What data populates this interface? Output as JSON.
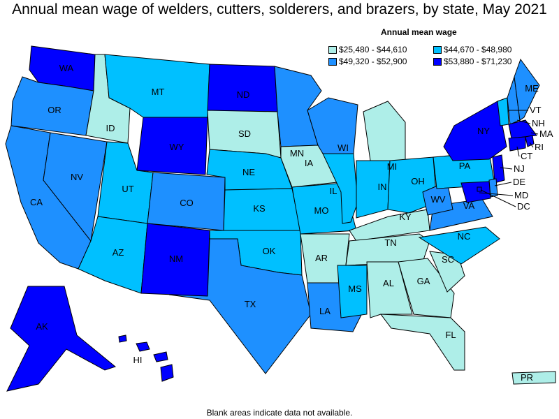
{
  "title": "Annual mean wage of welders, cutters, solderers, and brazers, by state, May 2021",
  "legend": {
    "title": "Annual mean wage",
    "classes": [
      {
        "id": "c1",
        "label": "$25,480 - $44,610",
        "color": "#aeeee8"
      },
      {
        "id": "c2",
        "label": "$44,670 - $48,980",
        "color": "#00c0ff"
      },
      {
        "id": "c3",
        "label": "$49,320 - $52,900",
        "color": "#1e90ff"
      },
      {
        "id": "c4",
        "label": "$53,880 - $71,230",
        "color": "#0000ff"
      }
    ]
  },
  "states": [
    {
      "abbr": "WA",
      "class": "c4"
    },
    {
      "abbr": "OR",
      "class": "c3"
    },
    {
      "abbr": "CA",
      "class": "c3"
    },
    {
      "abbr": "ID",
      "class": "c1"
    },
    {
      "abbr": "NV",
      "class": "c3"
    },
    {
      "abbr": "MT",
      "class": "c2"
    },
    {
      "abbr": "WY",
      "class": "c4"
    },
    {
      "abbr": "UT",
      "class": "c2"
    },
    {
      "abbr": "CO",
      "class": "c3"
    },
    {
      "abbr": "AZ",
      "class": "c2"
    },
    {
      "abbr": "NM",
      "class": "c4"
    },
    {
      "abbr": "ND",
      "class": "c4"
    },
    {
      "abbr": "SD",
      "class": "c1"
    },
    {
      "abbr": "NE",
      "class": "c2"
    },
    {
      "abbr": "KS",
      "class": "c2"
    },
    {
      "abbr": "OK",
      "class": "c2"
    },
    {
      "abbr": "TX",
      "class": "c3"
    },
    {
      "abbr": "MN",
      "class": "c3"
    },
    {
      "abbr": "IA",
      "class": "c1"
    },
    {
      "abbr": "MO",
      "class": "c2"
    },
    {
      "abbr": "AR",
      "class": "c1"
    },
    {
      "abbr": "LA",
      "class": "c3"
    },
    {
      "abbr": "WI",
      "class": "c3"
    },
    {
      "abbr": "IL",
      "class": "c2"
    },
    {
      "abbr": "MI",
      "class": "c1"
    },
    {
      "abbr": "IN",
      "class": "c2"
    },
    {
      "abbr": "OH",
      "class": "c2"
    },
    {
      "abbr": "KY",
      "class": "c1"
    },
    {
      "abbr": "TN",
      "class": "c1"
    },
    {
      "abbr": "MS",
      "class": "c2"
    },
    {
      "abbr": "AL",
      "class": "c1"
    },
    {
      "abbr": "GA",
      "class": "c1"
    },
    {
      "abbr": "FL",
      "class": "c1"
    },
    {
      "abbr": "SC",
      "class": "c1"
    },
    {
      "abbr": "NC",
      "class": "c2"
    },
    {
      "abbr": "VA",
      "class": "c3"
    },
    {
      "abbr": "WV",
      "class": "c3"
    },
    {
      "abbr": "PA",
      "class": "c2"
    },
    {
      "abbr": "NY",
      "class": "c4"
    },
    {
      "abbr": "VT",
      "class": "c2"
    },
    {
      "abbr": "NH",
      "class": "c3"
    },
    {
      "abbr": "ME",
      "class": "c3"
    },
    {
      "abbr": "MA",
      "class": "c4"
    },
    {
      "abbr": "RI",
      "class": "c4"
    },
    {
      "abbr": "CT",
      "class": "c4"
    },
    {
      "abbr": "NJ",
      "class": "c4"
    },
    {
      "abbr": "DE",
      "class": "c3"
    },
    {
      "abbr": "MD",
      "class": "c4"
    },
    {
      "abbr": "DC",
      "class": "c4"
    },
    {
      "abbr": "AK",
      "class": "c4"
    },
    {
      "abbr": "HI",
      "class": "c4"
    },
    {
      "abbr": "PR",
      "class": "c1"
    }
  ],
  "footnote": "Blank areas indicate data not available."
}
